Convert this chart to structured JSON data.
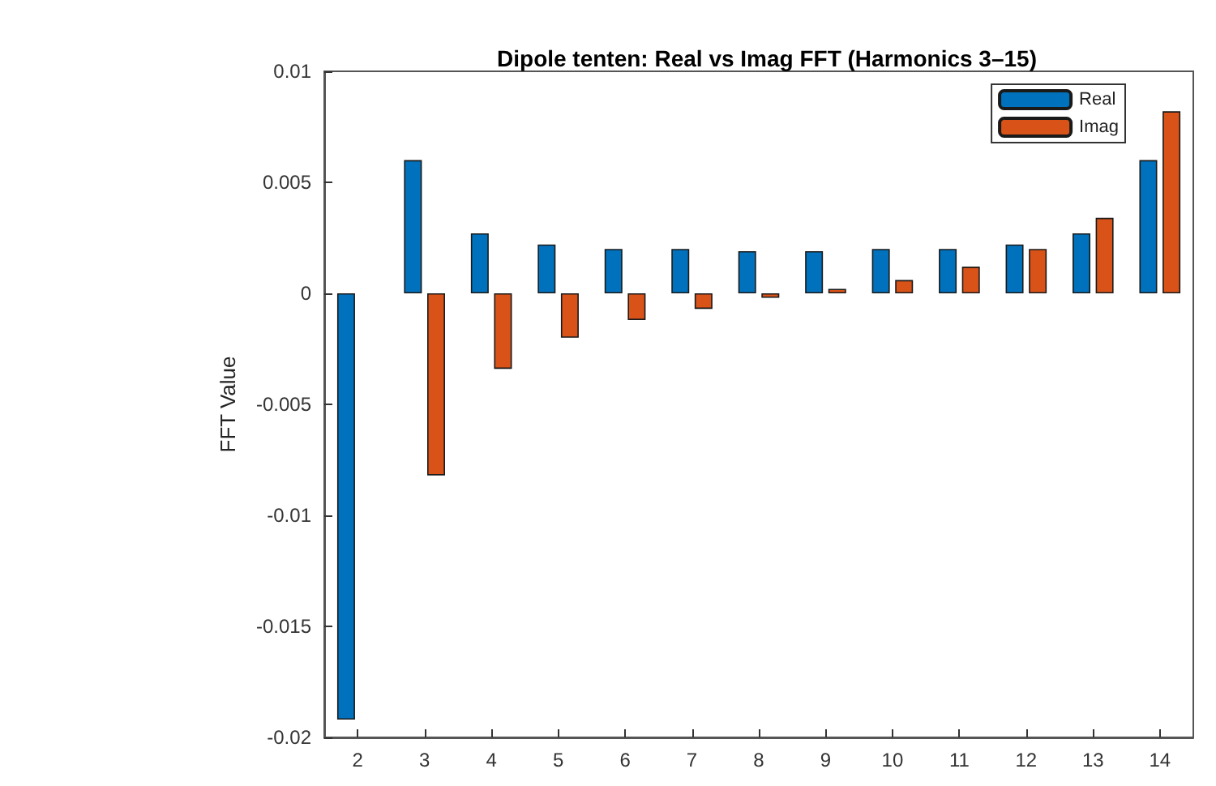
{
  "chart_data": {
    "type": "bar",
    "title": "Dipole tenten: Real vs Imag FFT (Harmonics 3–15)",
    "ylabel": "FFT Value",
    "categories": [
      "2",
      "3",
      "4",
      "5",
      "6",
      "7",
      "8",
      "9",
      "10",
      "11",
      "12",
      "13",
      "14"
    ],
    "series": [
      {
        "name": "Real",
        "color": "#0072bd",
        "values": [
          -0.0192,
          0.006,
          0.0027,
          0.0022,
          0.002,
          0.002,
          0.0019,
          0.0019,
          0.002,
          0.002,
          0.0022,
          0.0027,
          0.006
        ]
      },
      {
        "name": "Imag",
        "color": "#d95319",
        "values": [
          null,
          -0.0082,
          -0.0034,
          -0.002,
          -0.0012,
          -0.0007,
          -0.0002,
          0.0002,
          0.0006,
          0.0012,
          0.002,
          0.0034,
          0.0082
        ]
      }
    ],
    "ylim": [
      -0.02,
      0.01
    ],
    "yticks": [
      -0.02,
      -0.015,
      -0.01,
      -0.005,
      0,
      0.005,
      0.01
    ],
    "grid": false,
    "legend": "top right"
  }
}
